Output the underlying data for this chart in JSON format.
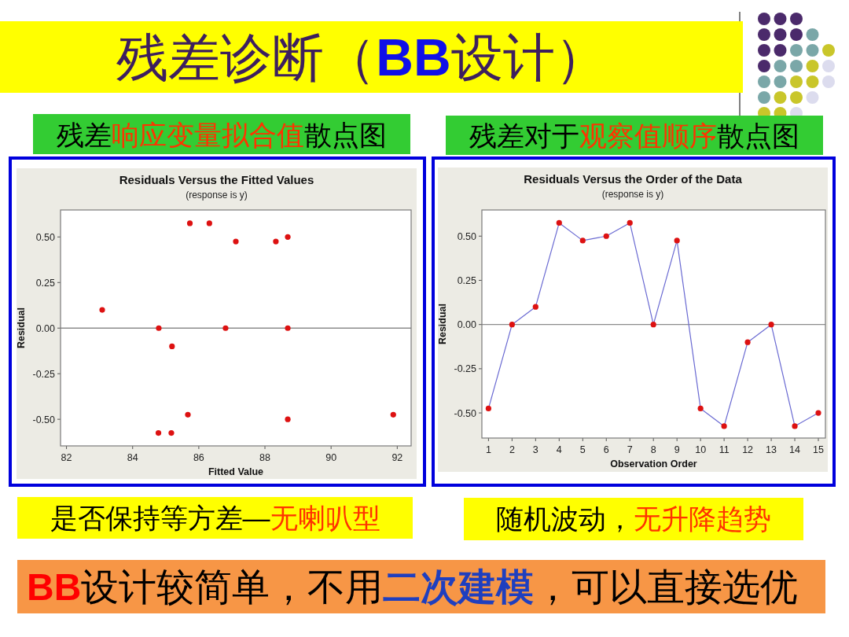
{
  "chart_data": [
    {
      "type": "other",
      "annotations": [
        "残差诊断（",
        "BB",
        "设计）",
        "BB",
        "设计较简单，不用",
        "二次建模",
        "，可以直接选优"
      ]
    },
    {
      "type": "scatter",
      "title": "Residuals Versus the Fitted Values",
      "subtitle": "(response is y)",
      "xlabel": "Fitted Value",
      "ylabel": "Residual",
      "annotations": [
        "残差",
        "响应变量拟合值",
        "散点图",
        "是否保持等方差—",
        "无喇叭型"
      ],
      "x": [
        83.08,
        84.79,
        85.19,
        85.73,
        86.32,
        87.12,
        88.33,
        88.69,
        86.81,
        88.69,
        84.78,
        85.17,
        85.67,
        88.69,
        91.88
      ],
      "series": [
        {
          "color": "#dd1111",
          "values": [
            0.1,
            0,
            -0.1,
            0.575,
            0.575,
            0.475,
            0.475,
            0.5,
            0,
            0,
            -0.575,
            -0.575,
            -0.475,
            -0.5,
            -0.475
          ]
        }
      ],
      "marker": "circle",
      "xlim": [
        81.82,
        92.42
      ],
      "ylim": [
        -0.646,
        0.648
      ],
      "xticks": [
        82,
        84,
        86,
        88,
        90,
        92
      ],
      "yticks": [
        {
          "value": -0.5,
          "label": "-0.50"
        },
        {
          "value": -0.25,
          "label": "-0.25"
        },
        {
          "value": 0,
          "label": "0.00"
        },
        {
          "value": 0.25,
          "label": "0.25"
        },
        {
          "value": 0.5,
          "label": "0.50"
        }
      ],
      "ref_lines": [
        {
          "axis": "y",
          "value": 0,
          "color": "#8c8c8c"
        }
      ]
    },
    {
      "type": "line",
      "title": "Residuals Versus the Order of the Data",
      "subtitle": "(response is y)",
      "xlabel": "Observation Order",
      "ylabel": "Residual",
      "annotations": [
        "残差对于",
        "观察值顺序",
        "散点图",
        "随机波动，",
        "无升降趋势"
      ],
      "x": [
        1,
        2,
        3,
        4,
        5,
        6,
        7,
        8,
        9,
        10,
        11,
        12,
        13,
        14,
        15
      ],
      "series": [
        {
          "color": "#6a6ad2",
          "colors": [
            "#dd1111",
            "#dd1111",
            "#dd1111",
            "#dd1111",
            "#dd1111",
            "#dd1111",
            "#dd1111",
            "#dd1111",
            "#dd1111",
            "#dd1111",
            "#dd1111",
            "#dd1111",
            "#dd1111",
            "#dd1111",
            "#dd1111"
          ],
          "values": [
            -0.475,
            0,
            0.1,
            0.575,
            0.475,
            0.5,
            0.575,
            0,
            0.475,
            -0.475,
            -0.575,
            -0.1,
            0,
            -0.575,
            -0.5
          ]
        }
      ],
      "marker": "circle",
      "line_style": "solid",
      "xlim": [
        0.72,
        15.3
      ],
      "ylim": [
        -0.642,
        0.648
      ],
      "xticks": [
        1,
        2,
        3,
        4,
        5,
        6,
        7,
        8,
        9,
        10,
        11,
        12,
        13,
        14,
        15
      ],
      "yticks": [
        {
          "value": -0.5,
          "label": "-0.50"
        },
        {
          "value": -0.25,
          "label": "-0.25"
        },
        {
          "value": 0,
          "label": "0.00"
        },
        {
          "value": 0.25,
          "label": "0.25"
        },
        {
          "value": 0.5,
          "label": "0.50"
        }
      ],
      "ref_lines": [
        {
          "axis": "y",
          "value": 0,
          "color": "#8c8c8c"
        }
      ]
    }
  ]
}
